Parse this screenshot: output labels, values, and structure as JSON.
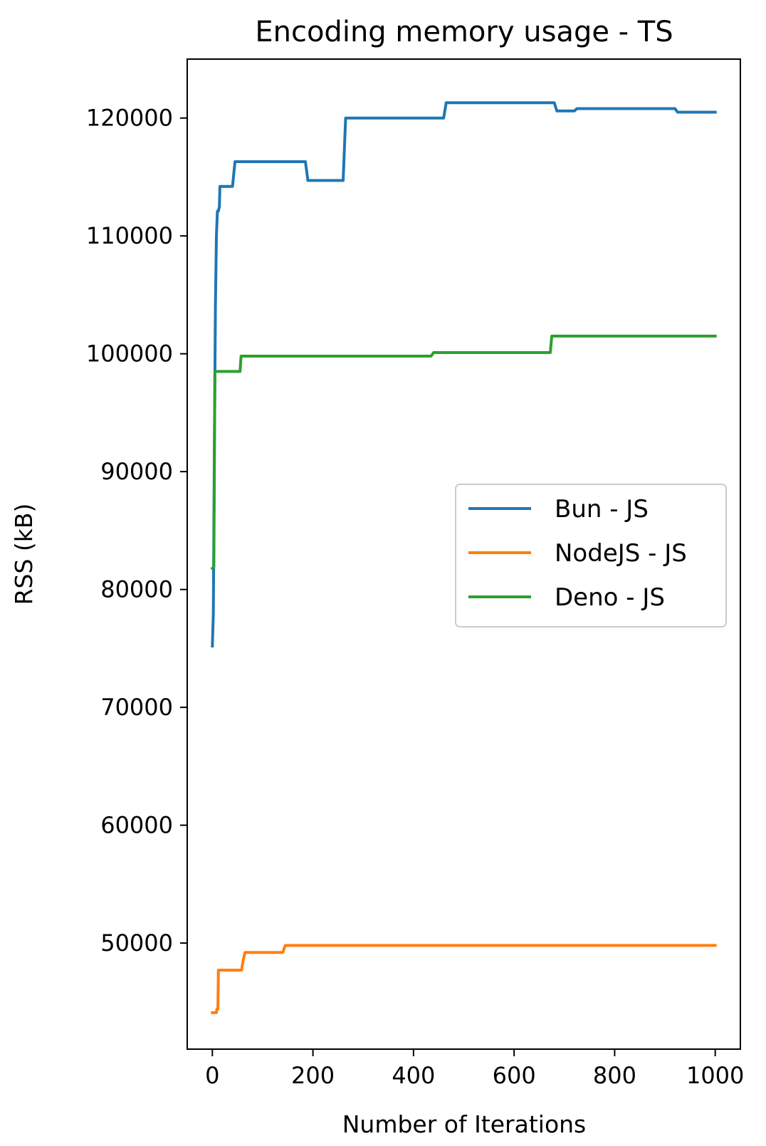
{
  "chart_data": {
    "type": "line",
    "title": "Encoding memory usage - TS",
    "xlabel": "Number of Iterations",
    "ylabel": "RSS (kB)",
    "xlim": [
      -50,
      1050
    ],
    "ylim": [
      41000,
      125000
    ],
    "xticks": [
      0,
      200,
      400,
      600,
      800,
      1000
    ],
    "yticks": [
      50000,
      60000,
      70000,
      80000,
      90000,
      100000,
      110000,
      120000
    ],
    "grid": false,
    "legend_position": "center-right",
    "series": [
      {
        "name": "Bun - JS",
        "color": "#1f77b4",
        "x": [
          0,
          2,
          4,
          6,
          8,
          10,
          12,
          14,
          15,
          16,
          40,
          45,
          185,
          190,
          260,
          265,
          460,
          465,
          680,
          685,
          720,
          725,
          920,
          925,
          1000
        ],
        "y": [
          75200,
          78000,
          92000,
          104000,
          110000,
          112100,
          112100,
          112500,
          114200,
          114200,
          114200,
          116300,
          116300,
          114700,
          114700,
          120000,
          120000,
          121300,
          121300,
          120600,
          120600,
          120800,
          120800,
          120500,
          120500
        ]
      },
      {
        "name": "NodeJS - JS",
        "color": "#ff7f0e",
        "x": [
          0,
          8,
          9,
          11,
          12,
          58,
          62,
          65,
          140,
          145,
          1000
        ],
        "y": [
          44100,
          44100,
          44400,
          44400,
          47700,
          47700,
          48700,
          49200,
          49200,
          49800,
          49800
        ]
      },
      {
        "name": "Deno - JS",
        "color": "#2ca02c",
        "x": [
          0,
          3,
          4,
          5,
          55,
          57,
          435,
          440,
          672,
          675,
          1000
        ],
        "y": [
          81800,
          81900,
          90000,
          98500,
          98500,
          99800,
          99800,
          100100,
          100100,
          101500,
          101500
        ]
      }
    ]
  }
}
